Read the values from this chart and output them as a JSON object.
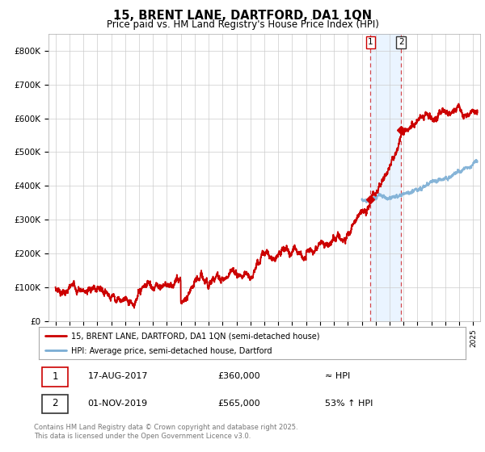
{
  "title": "15, BRENT LANE, DARTFORD, DA1 1QN",
  "subtitle": "Price paid vs. HM Land Registry's House Price Index (HPI)",
  "ylim": [
    0,
    850000
  ],
  "yticks": [
    0,
    100000,
    200000,
    300000,
    400000,
    500000,
    600000,
    700000,
    800000
  ],
  "ytick_labels": [
    "£0",
    "£100K",
    "£200K",
    "£300K",
    "£400K",
    "£500K",
    "£600K",
    "£700K",
    "£800K"
  ],
  "xlim_start": 1994.5,
  "xlim_end": 2025.5,
  "hpi_color": "#7aadd4",
  "price_color": "#cc0000",
  "transaction_1_date": 2017.63,
  "transaction_1_price": 360000,
  "transaction_2_date": 2019.83,
  "transaction_2_price": 565000,
  "legend_entry_1": "15, BRENT LANE, DARTFORD, DA1 1QN (semi-detached house)",
  "legend_entry_2": "HPI: Average price, semi-detached house, Dartford",
  "table_row_1": [
    "1",
    "17-AUG-2017",
    "£360,000",
    "≈ HPI"
  ],
  "table_row_2": [
    "2",
    "01-NOV-2019",
    "£565,000",
    "53% ↑ HPI"
  ],
  "footer": "Contains HM Land Registry data © Crown copyright and database right 2025.\nThis data is licensed under the Open Government Licence v3.0.",
  "background_color": "#ffffff",
  "grid_color": "#cccccc",
  "shade_color": "#ddeeff",
  "marker_color": "#990000"
}
